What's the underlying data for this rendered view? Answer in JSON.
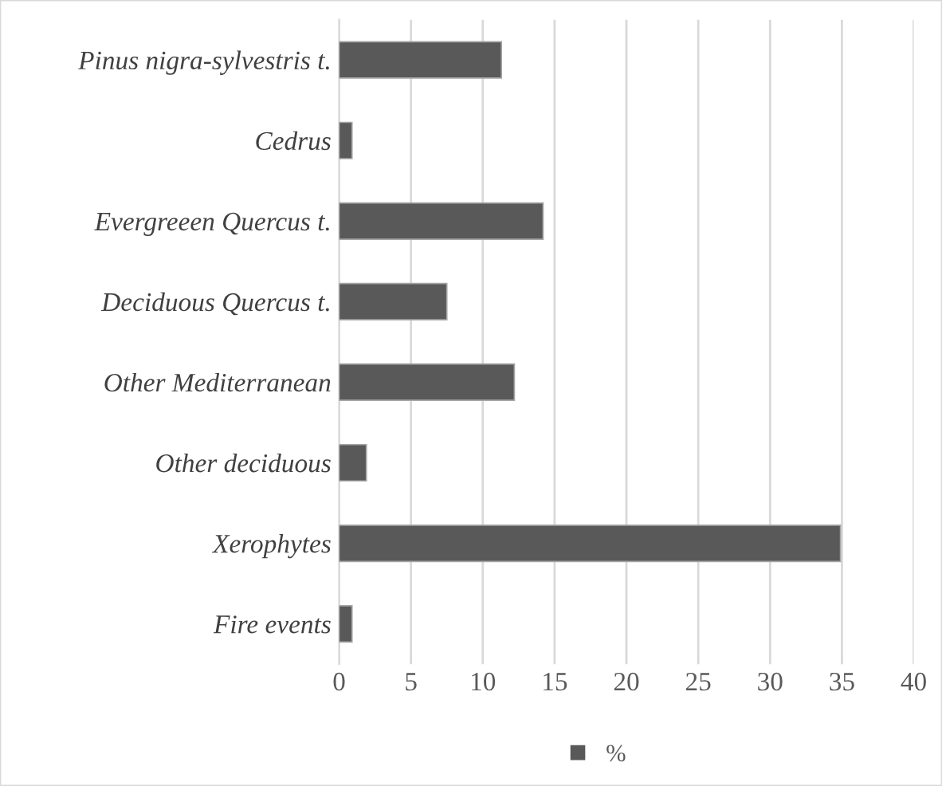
{
  "chart_data": {
    "type": "bar",
    "orientation": "horizontal",
    "categories": [
      "Pinus nigra-sylvestris t.",
      "Cedrus",
      "Evergreeen Quercus t.",
      "Deciduous Quercus t.",
      "Other Mediterranean",
      "Other deciduous",
      "Xerophytes",
      "Fire events"
    ],
    "series": [
      {
        "name": "%",
        "color": "#595959",
        "values": [
          11.3,
          0.9,
          14.2,
          7.5,
          12.2,
          1.9,
          34.9,
          0.9
        ]
      }
    ],
    "xlim": [
      0,
      40
    ],
    "xticks": [
      0,
      5,
      10,
      15,
      20,
      25,
      30,
      35,
      40
    ],
    "grid": "x",
    "legend": "bottom"
  }
}
